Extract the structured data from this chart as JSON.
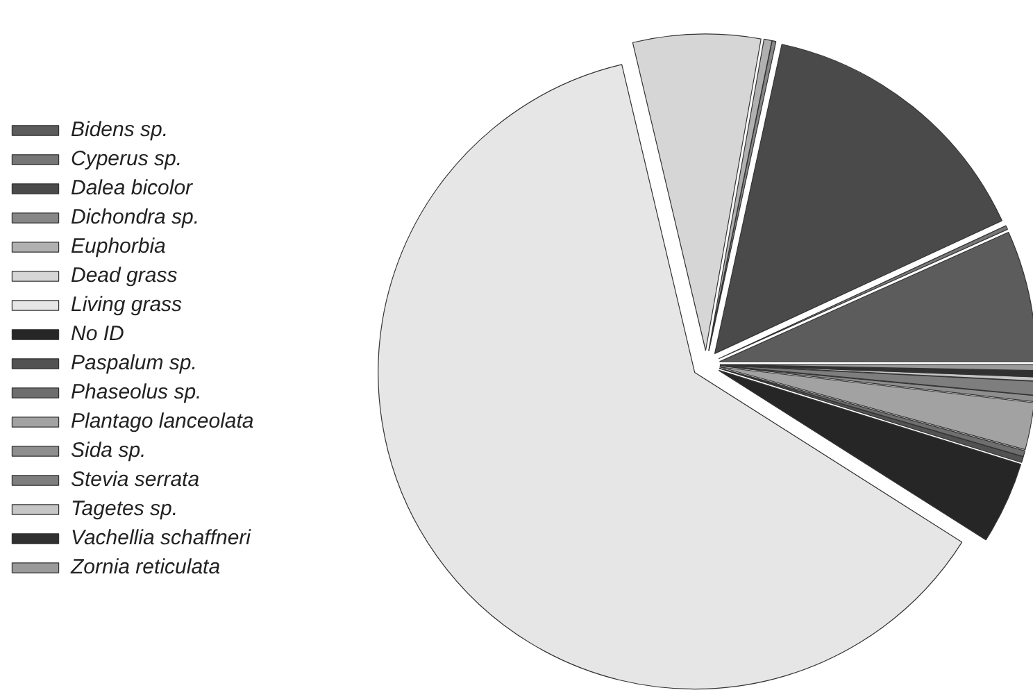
{
  "chart_data": {
    "type": "pie",
    "categories": [
      "Bidens sp.",
      "Cyperus sp.",
      "Dalea bicolor",
      "Dichondra sp.",
      "Euphorbia",
      "Dead grass",
      "Living grass",
      "No ID",
      "Paspalum sp.",
      "Phaseolus sp.",
      "Plantago lanceolata",
      "Sida sp.",
      "Stevia serrata",
      "Tagetes sp.",
      "Vachellia schaffneri",
      "Zornia reticulata"
    ],
    "values": [
      6.7,
      0.2,
      14.7,
      0.2,
      0.4,
      6.5,
      62.3,
      4.2,
      0.3,
      0.3,
      2.4,
      0.3,
      0.7,
      0.2,
      0.3,
      0.3
    ],
    "colors": [
      "#5c5c5c",
      "#767676",
      "#4a4a4a",
      "#868686",
      "#b0b0b0",
      "#d6d6d6",
      "#e6e6e6",
      "#262626",
      "#525252",
      "#6e6e6e",
      "#a2a2a2",
      "#8e8e8e",
      "#7e7e7e",
      "#c6c6c6",
      "#303030",
      "#9a9a9a"
    ],
    "legend": "left"
  }
}
